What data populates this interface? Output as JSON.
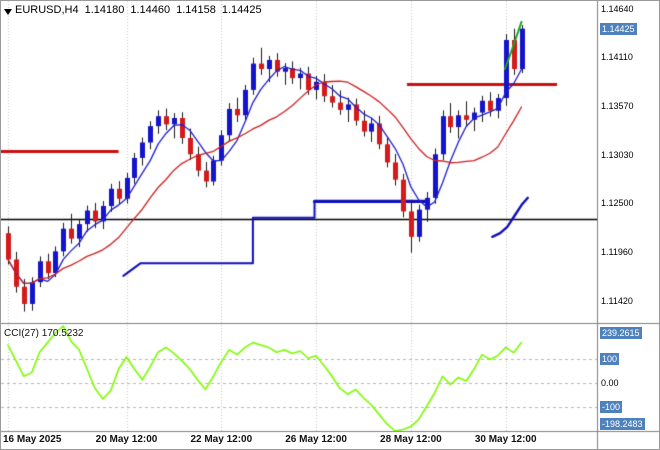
{
  "header": {
    "symbol": "EURUSD,H4",
    "open": "1.14180",
    "high": "1.14460",
    "low": "1.14158",
    "close": "1.14425"
  },
  "colors": {
    "bull": "#1414cc",
    "bear": "#d41a1a",
    "wick": "#1a1a1a",
    "ma_fast": "#2020cc",
    "ma_slow": "#cc2020",
    "step_line": "#0f0fbe",
    "hook_line": "#0f0fbe",
    "green_line": "#1ea51e",
    "resistance": "#cc0f0f",
    "support_hline": "#000000",
    "cci_line": "#7CFC00",
    "grid": "#c9c9c9",
    "separator": "#808080",
    "axis_box": "#4f81bd",
    "background": "#ffffff"
  },
  "price_axis": {
    "labels": [
      {
        "text": "1.14640",
        "value": 1.1464,
        "boxed": false
      },
      {
        "text": "1.14425",
        "value": 1.14425,
        "boxed": true
      },
      {
        "text": "1.14110",
        "value": 1.1411,
        "boxed": false
      },
      {
        "text": "1.13570",
        "value": 1.1357,
        "boxed": false
      },
      {
        "text": "1.13030",
        "value": 1.1303,
        "boxed": false
      },
      {
        "text": "1.12500",
        "value": 1.125,
        "boxed": false
      },
      {
        "text": "1.11960",
        "value": 1.1196,
        "boxed": false
      },
      {
        "text": "1.11420",
        "value": 1.1142,
        "boxed": false
      }
    ]
  },
  "indicator": {
    "name_label": "CCI(27) 170.5232",
    "axis_labels": [
      {
        "text": "239.2615",
        "value": 239.2615,
        "boxed": true
      },
      {
        "text": "100",
        "value": 100,
        "boxed": true
      },
      {
        "text": "0.00",
        "value": 0,
        "boxed": false
      },
      {
        "text": "-100",
        "value": -100,
        "boxed": true
      },
      {
        "text": "-198.2483",
        "value": -198.2483,
        "boxed": true
      }
    ]
  },
  "x_axis": {
    "labels": [
      {
        "text": "16 May 2025",
        "candle": 0
      },
      {
        "text": "20 May 12:00",
        "candle": 15
      },
      {
        "text": "22 May 12:00",
        "candle": 27
      },
      {
        "text": "26 May 12:00",
        "candle": 39
      },
      {
        "text": "28 May 12:00",
        "candle": 51
      },
      {
        "text": "30 May 12:00",
        "candle": 63
      }
    ]
  },
  "chart_data": {
    "type": "candlestick",
    "title": "EURUSD,H4",
    "timeframe": "H4",
    "ylim": [
      1.1118,
      1.1473
    ],
    "candles": [
      [
        1.1217,
        1.1224,
        1.1183,
        1.1188
      ],
      [
        1.1188,
        1.1196,
        1.1152,
        1.1158
      ],
      [
        1.1158,
        1.1166,
        1.1131,
        1.1139
      ],
      [
        1.1139,
        1.1168,
        1.1132,
        1.1163
      ],
      [
        1.1163,
        1.1191,
        1.1158,
        1.1186
      ],
      [
        1.1186,
        1.1194,
        1.1167,
        1.1173
      ],
      [
        1.1173,
        1.1202,
        1.1169,
        1.1197
      ],
      [
        1.1197,
        1.1228,
        1.1192,
        1.1222
      ],
      [
        1.1222,
        1.1238,
        1.1206,
        1.1211
      ],
      [
        1.1211,
        1.1232,
        1.1202,
        1.1227
      ],
      [
        1.1227,
        1.1247,
        1.1219,
        1.1242
      ],
      [
        1.1242,
        1.125,
        1.1223,
        1.123
      ],
      [
        1.123,
        1.1252,
        1.1222,
        1.1247
      ],
      [
        1.1247,
        1.1271,
        1.1241,
        1.1266
      ],
      [
        1.1266,
        1.1274,
        1.1249,
        1.1255
      ],
      [
        1.1255,
        1.1283,
        1.125,
        1.1278
      ],
      [
        1.1278,
        1.1305,
        1.1272,
        1.13
      ],
      [
        1.13,
        1.1322,
        1.1292,
        1.1317
      ],
      [
        1.1317,
        1.134,
        1.131,
        1.1335
      ],
      [
        1.1335,
        1.1352,
        1.1327,
        1.1346
      ],
      [
        1.1346,
        1.1354,
        1.1331,
        1.1337
      ],
      [
        1.1337,
        1.1349,
        1.1322,
        1.1344
      ],
      [
        1.1344,
        1.135,
        1.1316,
        1.1322
      ],
      [
        1.1322,
        1.1332,
        1.1298,
        1.1304
      ],
      [
        1.1304,
        1.1312,
        1.128,
        1.1286
      ],
      [
        1.1286,
        1.1295,
        1.1268,
        1.1274
      ],
      [
        1.1274,
        1.1302,
        1.127,
        1.1297
      ],
      [
        1.1297,
        1.133,
        1.1292,
        1.1325
      ],
      [
        1.1325,
        1.136,
        1.1318,
        1.1354
      ],
      [
        1.1354,
        1.1366,
        1.134,
        1.1347
      ],
      [
        1.1347,
        1.138,
        1.1342,
        1.1375
      ],
      [
        1.1375,
        1.141,
        1.137,
        1.1404
      ],
      [
        1.1404,
        1.1421,
        1.1392,
        1.1398
      ],
      [
        1.1398,
        1.1412,
        1.1384,
        1.1408
      ],
      [
        1.1408,
        1.1415,
        1.139,
        1.1395
      ],
      [
        1.1395,
        1.1404,
        1.1381,
        1.1399
      ],
      [
        1.1399,
        1.1406,
        1.1382,
        1.1388
      ],
      [
        1.1388,
        1.1399,
        1.1376,
        1.1393
      ],
      [
        1.1393,
        1.14,
        1.137,
        1.1375
      ],
      [
        1.1375,
        1.139,
        1.1365,
        1.1384
      ],
      [
        1.1384,
        1.1392,
        1.1362,
        1.1368
      ],
      [
        1.1368,
        1.138,
        1.1356,
        1.1361
      ],
      [
        1.1361,
        1.1374,
        1.1348,
        1.1353
      ],
      [
        1.1353,
        1.1366,
        1.134,
        1.1359
      ],
      [
        1.1359,
        1.1365,
        1.1336,
        1.1341
      ],
      [
        1.1341,
        1.1352,
        1.1324,
        1.1329
      ],
      [
        1.1329,
        1.1344,
        1.1318,
        1.1338
      ],
      [
        1.1338,
        1.1346,
        1.131,
        1.1315
      ],
      [
        1.1315,
        1.1322,
        1.129,
        1.1295
      ],
      [
        1.1295,
        1.1304,
        1.127,
        1.1276
      ],
      [
        1.1276,
        1.1282,
        1.1235,
        1.1241
      ],
      [
        1.1241,
        1.1252,
        1.1196,
        1.1213
      ],
      [
        1.1213,
        1.1248,
        1.1208,
        1.1243
      ],
      [
        1.1243,
        1.1262,
        1.123,
        1.1256
      ],
      [
        1.1256,
        1.131,
        1.125,
        1.1304
      ],
      [
        1.1304,
        1.1352,
        1.1298,
        1.1346
      ],
      [
        1.1346,
        1.136,
        1.1328,
        1.1334
      ],
      [
        1.1334,
        1.1352,
        1.1322,
        1.1347
      ],
      [
        1.1347,
        1.1362,
        1.1336,
        1.1342
      ],
      [
        1.1342,
        1.1355,
        1.133,
        1.135
      ],
      [
        1.135,
        1.1368,
        1.134,
        1.1363
      ],
      [
        1.1363,
        1.1372,
        1.1346,
        1.1352
      ],
      [
        1.1352,
        1.137,
        1.1344,
        1.1366
      ],
      [
        1.1366,
        1.1436,
        1.1358,
        1.143
      ],
      [
        1.143,
        1.1442,
        1.1392,
        1.1398
      ],
      [
        1.1398,
        1.1446,
        1.1394,
        1.14425
      ]
    ],
    "overlays": {
      "ma_fast": {
        "type": "sma",
        "period": 5
      },
      "ma_slow": {
        "type": "sma",
        "period": 13
      },
      "support_hline": {
        "price": 1.1233,
        "full_width": true
      },
      "resistance_segments": [
        {
          "price": 1.1308,
          "from_candle": -1,
          "to_candle": 14
        },
        {
          "price": 1.1381,
          "from_candle": 50.5,
          "to_candle": 69.5
        }
      ],
      "step_line": {
        "points": [
          [
            14.6,
            1.117
          ],
          [
            16.8,
            1.1184
          ],
          [
            31,
            1.1184
          ],
          [
            31,
            1.1234
          ],
          [
            38.8,
            1.1234
          ],
          [
            38.8,
            1.1252
          ],
          [
            52.9,
            1.1252
          ]
        ],
        "thick_segment": [
          [
            38.8,
            1.1252
          ],
          [
            52.9,
            1.1252
          ]
        ]
      },
      "hook_line": {
        "points": [
          [
            61.3,
            1.1213
          ],
          [
            62.3,
            1.1217
          ],
          [
            63.2,
            1.1224
          ],
          [
            64.1,
            1.1236
          ],
          [
            65.0,
            1.1248
          ],
          [
            65.8,
            1.1256
          ]
        ]
      },
      "green_segment": {
        "points": [
          [
            62.9,
            1.1398
          ],
          [
            63.9,
            1.1422
          ],
          [
            65.0,
            1.145
          ]
        ]
      }
    },
    "cci": {
      "name": "CCI",
      "period": 27,
      "current": 170.5232,
      "ylim": [
        -198.2483,
        239.2615
      ],
      "levels": [
        100,
        0,
        -100
      ],
      "values": [
        160,
        95,
        30,
        45,
        130,
        170,
        210,
        239.2615,
        175,
        140,
        60,
        -20,
        -65,
        -30,
        60,
        110,
        60,
        15,
        70,
        130,
        150,
        125,
        95,
        60,
        15,
        -25,
        30,
        90,
        140,
        120,
        150,
        170,
        160,
        150,
        130,
        140,
        125,
        135,
        105,
        115,
        75,
        30,
        -20,
        -45,
        -25,
        -60,
        -90,
        -130,
        -170,
        -198.2483,
        -192,
        -180,
        -150,
        -95,
        -40,
        30,
        -5,
        25,
        10,
        60,
        120,
        100,
        115,
        150,
        128,
        170.5232
      ]
    }
  }
}
